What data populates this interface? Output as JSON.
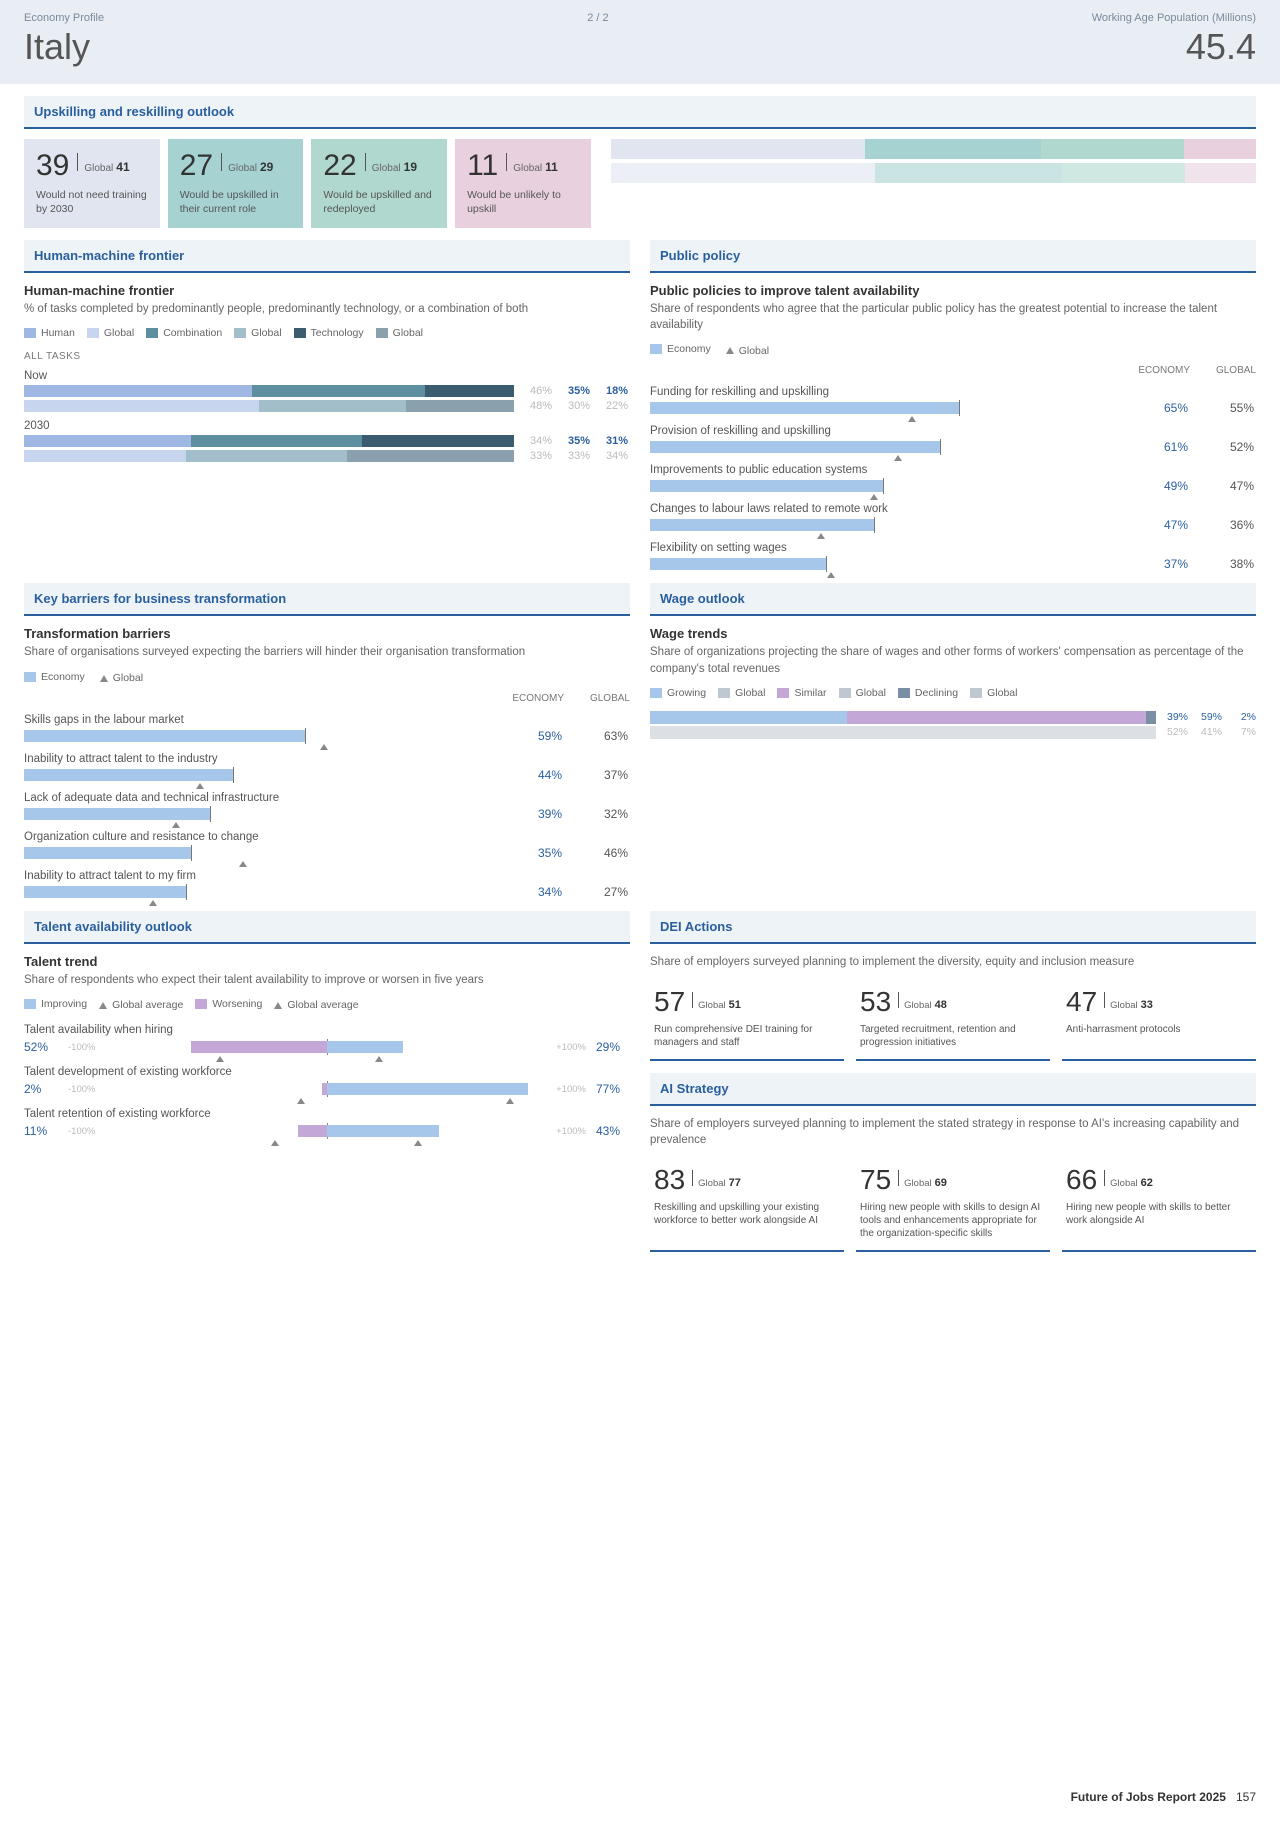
{
  "header": {
    "left_label": "Economy Profile",
    "country": "Italy",
    "page": "2 / 2",
    "right_label": "Working Age Population (Millions)",
    "population": "45.4"
  },
  "colors": {
    "card_bg": [
      "#e0e5ef",
      "#a6d2d2",
      "#b0d8cf",
      "#e8d0df"
    ],
    "human": "#9fb8e3",
    "human_global": "#c7d5ee",
    "combination": "#5e8fa0",
    "combination_global": "#a2bfc9",
    "technology": "#3b5b6e",
    "technology_global": "#8aa0ad",
    "economy_bar": "#a7c7ea",
    "improving": "#a7c7ea",
    "worsening": "#c3a7d6",
    "growing": "#a7c7ea",
    "similar": "#c3a7d6",
    "declining": "#7a8fa6",
    "accent": "#2a5f9e",
    "muted": "#bfc7d0"
  },
  "upskilling": {
    "title": "Upskilling and reskilling outlook",
    "cards": [
      {
        "value": "39",
        "global": "41",
        "desc": "Would not need training by 2030"
      },
      {
        "value": "27",
        "global": "29",
        "desc": "Would be upskilled in their current role"
      },
      {
        "value": "22",
        "global": "19",
        "desc": "Would be upskilled and redeployed"
      },
      {
        "value": "11",
        "global": "11",
        "desc": "Would be unlikely to upskill"
      }
    ],
    "stacks": {
      "row1": [
        39,
        27,
        22,
        11
      ],
      "row2": [
        41,
        29,
        19,
        11
      ]
    }
  },
  "hmf": {
    "title": "Human-machine frontier",
    "subhead": "Human-machine frontier",
    "desc": "% of tasks completed by predominantly people, predominantly technology, or a combination of both",
    "legend": [
      {
        "label": "Human",
        "key": "human"
      },
      {
        "label": "Global",
        "key": "human_global"
      },
      {
        "label": "Combination",
        "key": "combination"
      },
      {
        "label": "Global",
        "key": "combination_global"
      },
      {
        "label": "Technology",
        "key": "technology"
      },
      {
        "label": "Global",
        "key": "technology_global"
      }
    ],
    "alltasks": "ALL TASKS",
    "periods": [
      {
        "label": "Now",
        "econ": [
          46,
          35,
          18
        ],
        "global": [
          48,
          30,
          22
        ]
      },
      {
        "label": "2030",
        "econ": [
          34,
          35,
          31
        ],
        "global": [
          33,
          33,
          34
        ]
      }
    ]
  },
  "policy": {
    "title": "Public policy",
    "subhead": "Public policies to improve talent availability",
    "desc": "Share of respondents who agree that the particular public policy has the greatest potential to increase the talent availability",
    "legend_econ": "Economy",
    "legend_global": "Global",
    "col_econ": "ECONOMY",
    "col_global": "GLOBAL",
    "items": [
      {
        "label": "Funding for reskilling and upskilling",
        "econ": 65,
        "global": 55
      },
      {
        "label": "Provision of reskilling and upskilling",
        "econ": 61,
        "global": 52
      },
      {
        "label": "Improvements to public education systems",
        "econ": 49,
        "global": 47
      },
      {
        "label": "Changes to labour laws related to remote work",
        "econ": 47,
        "global": 36
      },
      {
        "label": "Flexibility on setting wages",
        "econ": 37,
        "global": 38
      }
    ]
  },
  "barriers": {
    "title": "Key barriers for business transformation",
    "subhead": "Transformation barriers",
    "desc": "Share of organisations surveyed expecting the barriers will hinder their organisation transformation",
    "col_econ": "ECONOMY",
    "col_global": "GLOBAL",
    "items": [
      {
        "label": "Skills gaps in the labour market",
        "econ": 59,
        "global": 63
      },
      {
        "label": "Inability to attract talent to the industry",
        "econ": 44,
        "global": 37
      },
      {
        "label": "Lack of adequate data and technical infrastructure",
        "econ": 39,
        "global": 32
      },
      {
        "label": "Organization culture and resistance to change",
        "econ": 35,
        "global": 46
      },
      {
        "label": "Inability to attract talent to my firm",
        "econ": 34,
        "global": 27
      }
    ]
  },
  "wage": {
    "title": "Wage outlook",
    "subhead": "Wage trends",
    "desc": "Share of organizations projecting the share of wages and other forms of workers' compensation as percentage of the company's total revenues",
    "legend": [
      {
        "label": "Growing",
        "key": "growing"
      },
      {
        "label": "Global",
        "key": "muted"
      },
      {
        "label": "Similar",
        "key": "similar"
      },
      {
        "label": "Global",
        "key": "muted"
      },
      {
        "label": "Declining",
        "key": "declining"
      },
      {
        "label": "Global",
        "key": "muted"
      }
    ],
    "rows": [
      {
        "vals": [
          39,
          59,
          2
        ],
        "colors": [
          "growing",
          "similar",
          "declining"
        ]
      },
      {
        "vals": [
          52,
          41,
          7
        ],
        "colors": [
          "muted",
          "muted",
          "muted"
        ],
        "faded": true
      }
    ],
    "val_labels": [
      [
        "39%",
        "59%",
        "2%"
      ],
      [
        "52%",
        "41%",
        "7%"
      ]
    ]
  },
  "talent": {
    "title": "Talent availability outlook",
    "subhead": "Talent trend",
    "desc": "Share of respondents who expect their talent availability to improve or worsen in five years",
    "legend": [
      {
        "label": "Improving",
        "type": "sw",
        "key": "improving"
      },
      {
        "label": "Global average",
        "type": "tri"
      },
      {
        "label": "Worsening",
        "type": "sw",
        "key": "worsening"
      },
      {
        "label": "Global average",
        "type": "tri"
      }
    ],
    "neg_label": "-100%",
    "pos_label": "+100%",
    "rows": [
      {
        "label": "Talent availability when hiring",
        "neg": 52,
        "pos": 29,
        "gneg": 41,
        "gpos": 20
      },
      {
        "label": "Talent development of existing workforce",
        "neg": 2,
        "pos": 77,
        "gneg": 10,
        "gpos": 70
      },
      {
        "label": "Talent retention of existing workforce",
        "neg": 11,
        "pos": 43,
        "gneg": 20,
        "gpos": 35
      }
    ]
  },
  "dei": {
    "title": "DEI Actions",
    "desc": "Share of employers surveyed planning to implement the diversity, equity and inclusion measure",
    "cards": [
      {
        "value": "57",
        "global": "51",
        "desc": "Run comprehensive DEI training for managers and staff"
      },
      {
        "value": "53",
        "global": "48",
        "desc": "Targeted recruitment, retention and progression initiatives"
      },
      {
        "value": "47",
        "global": "33",
        "desc": "Anti-harrasment protocols"
      }
    ]
  },
  "ai": {
    "title": "AI Strategy",
    "desc": "Share of employers surveyed planning to implement the stated strategy in response to AI's increasing capability and prevalence",
    "cards": [
      {
        "value": "83",
        "global": "77",
        "desc": "Reskilling and upskilling your existing workforce to better work alongside AI"
      },
      {
        "value": "75",
        "global": "69",
        "desc": "Hiring new people with skills to design AI tools and enhancements appropriate for the organization-specific skills"
      },
      {
        "value": "66",
        "global": "62",
        "desc": "Hiring new people with skills to better work alongside AI"
      }
    ]
  },
  "global_label": "Global",
  "footer": {
    "title": "Future of Jobs Report 2025",
    "page": "157"
  }
}
